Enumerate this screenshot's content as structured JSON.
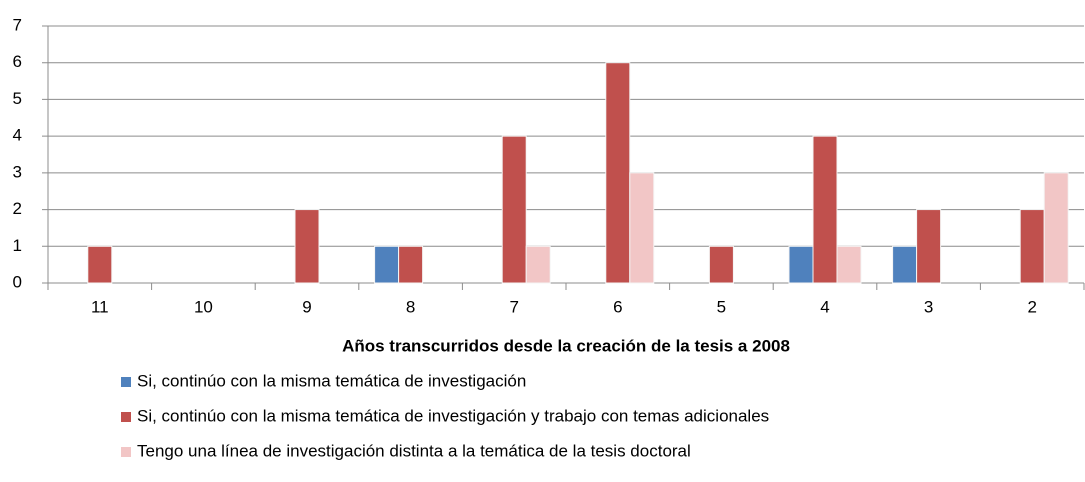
{
  "chart_data": {
    "type": "bar",
    "x_label": "Años transcurridos desde la creación de la tesis a 2008",
    "categories": [
      "11",
      "10",
      "9",
      "8",
      "7",
      "6",
      "5",
      "4",
      "3",
      "2"
    ],
    "series": [
      {
        "name": "Si, continúo con la misma temática de investigación",
        "color": "#4f81bd",
        "values": [
          0,
          0,
          0,
          1,
          0,
          0,
          0,
          1,
          1,
          0
        ]
      },
      {
        "name": "Si, continúo con la misma temática de investigación y trabajo con temas adicionales",
        "color": "#c0504d",
        "values": [
          1,
          0,
          2,
          1,
          4,
          6,
          1,
          4,
          2,
          2
        ]
      },
      {
        "name": "Tengo una línea de investigación distinta a la temática de la tesis doctoral",
        "color": "#f2c6c6",
        "values": [
          0,
          0,
          0,
          0,
          1,
          3,
          0,
          1,
          0,
          3
        ]
      }
    ],
    "ylim": [
      0,
      7
    ],
    "yticks": [
      0,
      1,
      2,
      3,
      4,
      5,
      6,
      7
    ],
    "grid": true,
    "legend": "bottom"
  }
}
